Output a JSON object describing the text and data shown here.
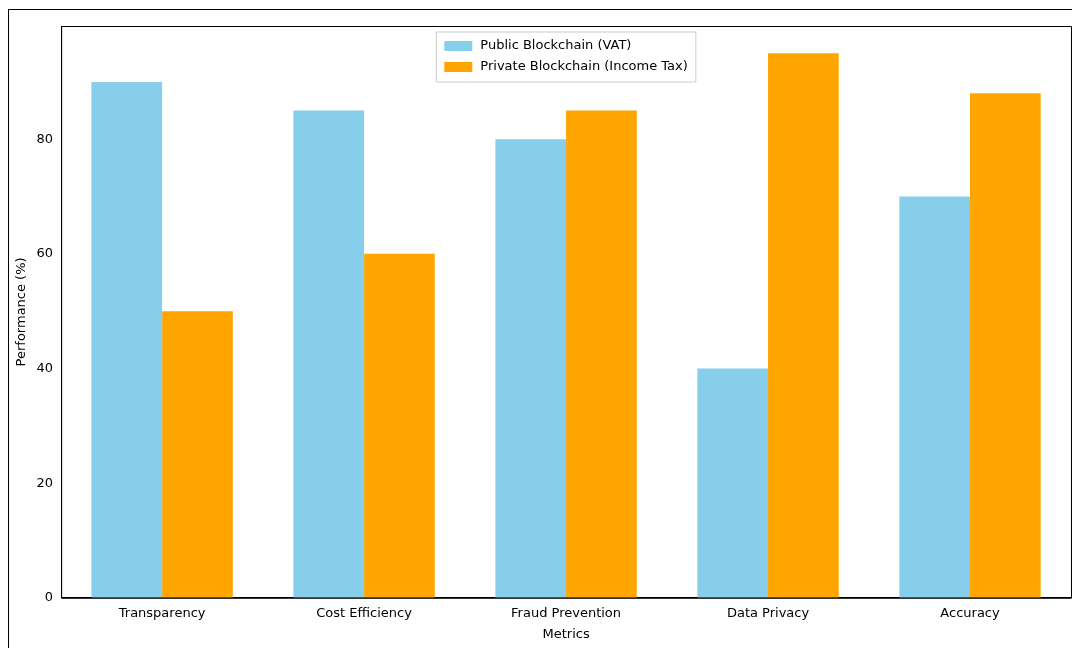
{
  "chart_data": {
    "type": "bar",
    "xlabel": "Metrics",
    "ylabel": "Performance (%)",
    "categories": [
      "Transparency",
      "Cost Efficiency",
      "Fraud Prevention",
      "Data Privacy",
      "Accuracy"
    ],
    "series": [
      {
        "name": "Public Blockchain (VAT)",
        "color": "#87ceeb",
        "values": [
          90,
          85,
          80,
          40,
          70
        ]
      },
      {
        "name": "Private Blockchain (Income Tax)",
        "color": "#ffa500",
        "values": [
          50,
          60,
          85,
          95,
          88
        ]
      }
    ],
    "ylim": [
      0,
      99.75
    ],
    "yticks": [
      0,
      20,
      40,
      60,
      80
    ],
    "grid": false,
    "legend": "top"
  }
}
